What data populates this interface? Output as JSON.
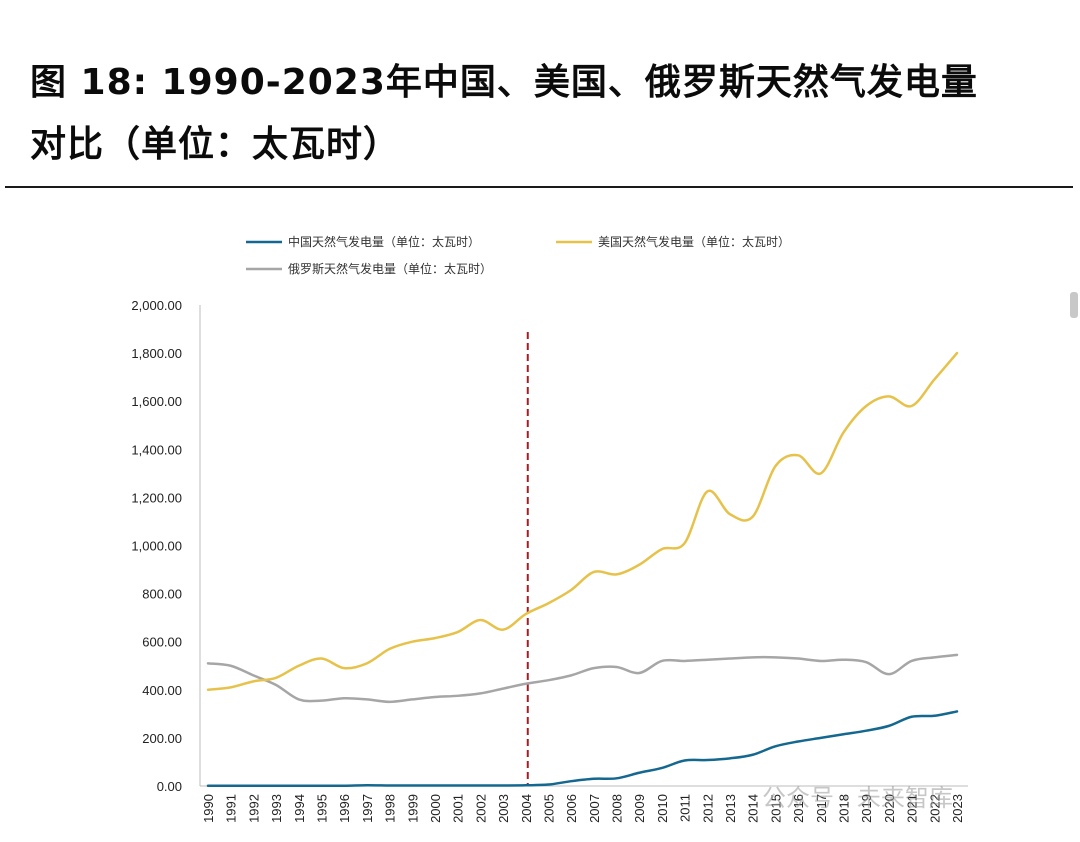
{
  "figure": {
    "title_line1": "图  18: 1990-2023年中国、美国、俄罗斯天然气发电量",
    "title_line2": "对比（单位：太瓦时）"
  },
  "watermark": "公众号 · 未来智库",
  "chart_data": {
    "type": "line",
    "x": [
      "1990",
      "1991",
      "1992",
      "1993",
      "1994",
      "1995",
      "1996",
      "1997",
      "1998",
      "1999",
      "2000",
      "2001",
      "2002",
      "2003",
      "2004",
      "2005",
      "2006",
      "2007",
      "2008",
      "2009",
      "2010",
      "2011",
      "2012",
      "2013",
      "2014",
      "2015",
      "2016",
      "2017",
      "2018",
      "2019",
      "2020",
      "2021",
      "2022",
      "2023"
    ],
    "ylim": [
      0,
      2000
    ],
    "yticks": [
      0,
      200,
      400,
      600,
      800,
      1000,
      1200,
      1400,
      1600,
      1800,
      2000
    ],
    "ytick_labels": [
      "0.00",
      "200.00",
      "400.00",
      "600.00",
      "800.00",
      "1,000.00",
      "1,200.00",
      "1,400.00",
      "1,600.00",
      "1,800.00",
      "2,000.00"
    ],
    "xtick_labels": [
      "1990",
      "1991",
      "1992",
      "1993",
      "1994",
      "1995",
      "1996",
      "1997",
      "1998",
      "1999",
      "2000",
      "2001",
      "2002",
      "2003",
      "2004",
      "2005",
      "2006",
      "2007",
      "2008",
      "2009",
      "2010",
      "2011",
      "2012",
      "2013",
      "2014",
      "2015",
      "2016",
      "2017",
      "2018",
      "2019",
      "2020",
      "2021",
      "2022",
      "2023"
    ],
    "legend_position": "top",
    "grid": false,
    "reference_line": {
      "x": "2004",
      "color": "#a31d24",
      "style": "dashed"
    },
    "series": [
      {
        "name": "中国天然气发电量（单位：太瓦时）",
        "color": "#14688f",
        "values": [
          1,
          1,
          1,
          1,
          1,
          1,
          1,
          3,
          2,
          2,
          2,
          2,
          2,
          2,
          3,
          6,
          20,
          30,
          32,
          55,
          75,
          106,
          108,
          115,
          130,
          165,
          185,
          200,
          215,
          230,
          250,
          288,
          292,
          310
        ]
      },
      {
        "name": "美国天然气发电量（单位：太瓦时）",
        "color": "#e7c24a",
        "values": [
          400,
          410,
          435,
          450,
          500,
          530,
          490,
          510,
          570,
          600,
          615,
          640,
          690,
          650,
          715,
          760,
          815,
          890,
          880,
          920,
          985,
          1010,
          1225,
          1130,
          1120,
          1330,
          1375,
          1300,
          1470,
          1580,
          1620,
          1580,
          1690,
          1800
        ]
      },
      {
        "name": "俄罗斯天然气发电量（单位：太瓦时）",
        "color": "#a6a6a6",
        "values": [
          510,
          500,
          460,
          420,
          360,
          355,
          365,
          360,
          350,
          360,
          370,
          375,
          385,
          405,
          425,
          440,
          460,
          490,
          495,
          470,
          520,
          520,
          525,
          530,
          535,
          535,
          530,
          520,
          525,
          515,
          465,
          520,
          535,
          545
        ]
      }
    ]
  }
}
